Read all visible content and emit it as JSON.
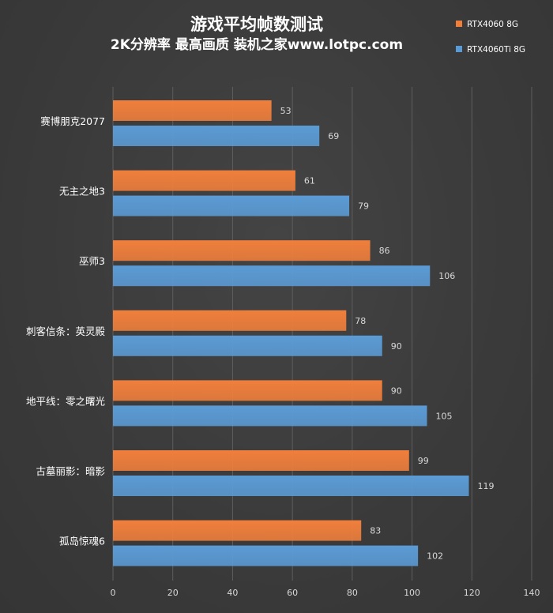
{
  "chart_data": {
    "type": "bar",
    "orientation": "horizontal",
    "title": "游戏平均帧数测试",
    "subtitle": "2K分辨率 最高画质 装机之家www.lotpc.com",
    "categories": [
      "赛博朋克2077",
      "无主之地3",
      "巫师3",
      "刺客信条：英灵殿",
      "地平线：零之曙光",
      "古墓丽影：暗影",
      "孤岛惊魂6"
    ],
    "series": [
      {
        "name": "RTX4060 8G",
        "color": "#f07f3c",
        "values": [
          53,
          61,
          86,
          78,
          90,
          99,
          83
        ]
      },
      {
        "name": "RTX4060Ti 8G",
        "color": "#5b9bd5",
        "values": [
          69,
          79,
          106,
          90,
          105,
          119,
          102
        ]
      }
    ],
    "xlim": [
      0,
      140
    ],
    "xticks": [
      0,
      20,
      40,
      60,
      80,
      100,
      120,
      140
    ],
    "grid": true,
    "legend_position": "top-right",
    "data_labels": true
  },
  "colors": {
    "background": "#3b3b3b",
    "text": "#ffffff",
    "tick_text": "#d9d9d9",
    "gridline": "#5e5e5e"
  }
}
